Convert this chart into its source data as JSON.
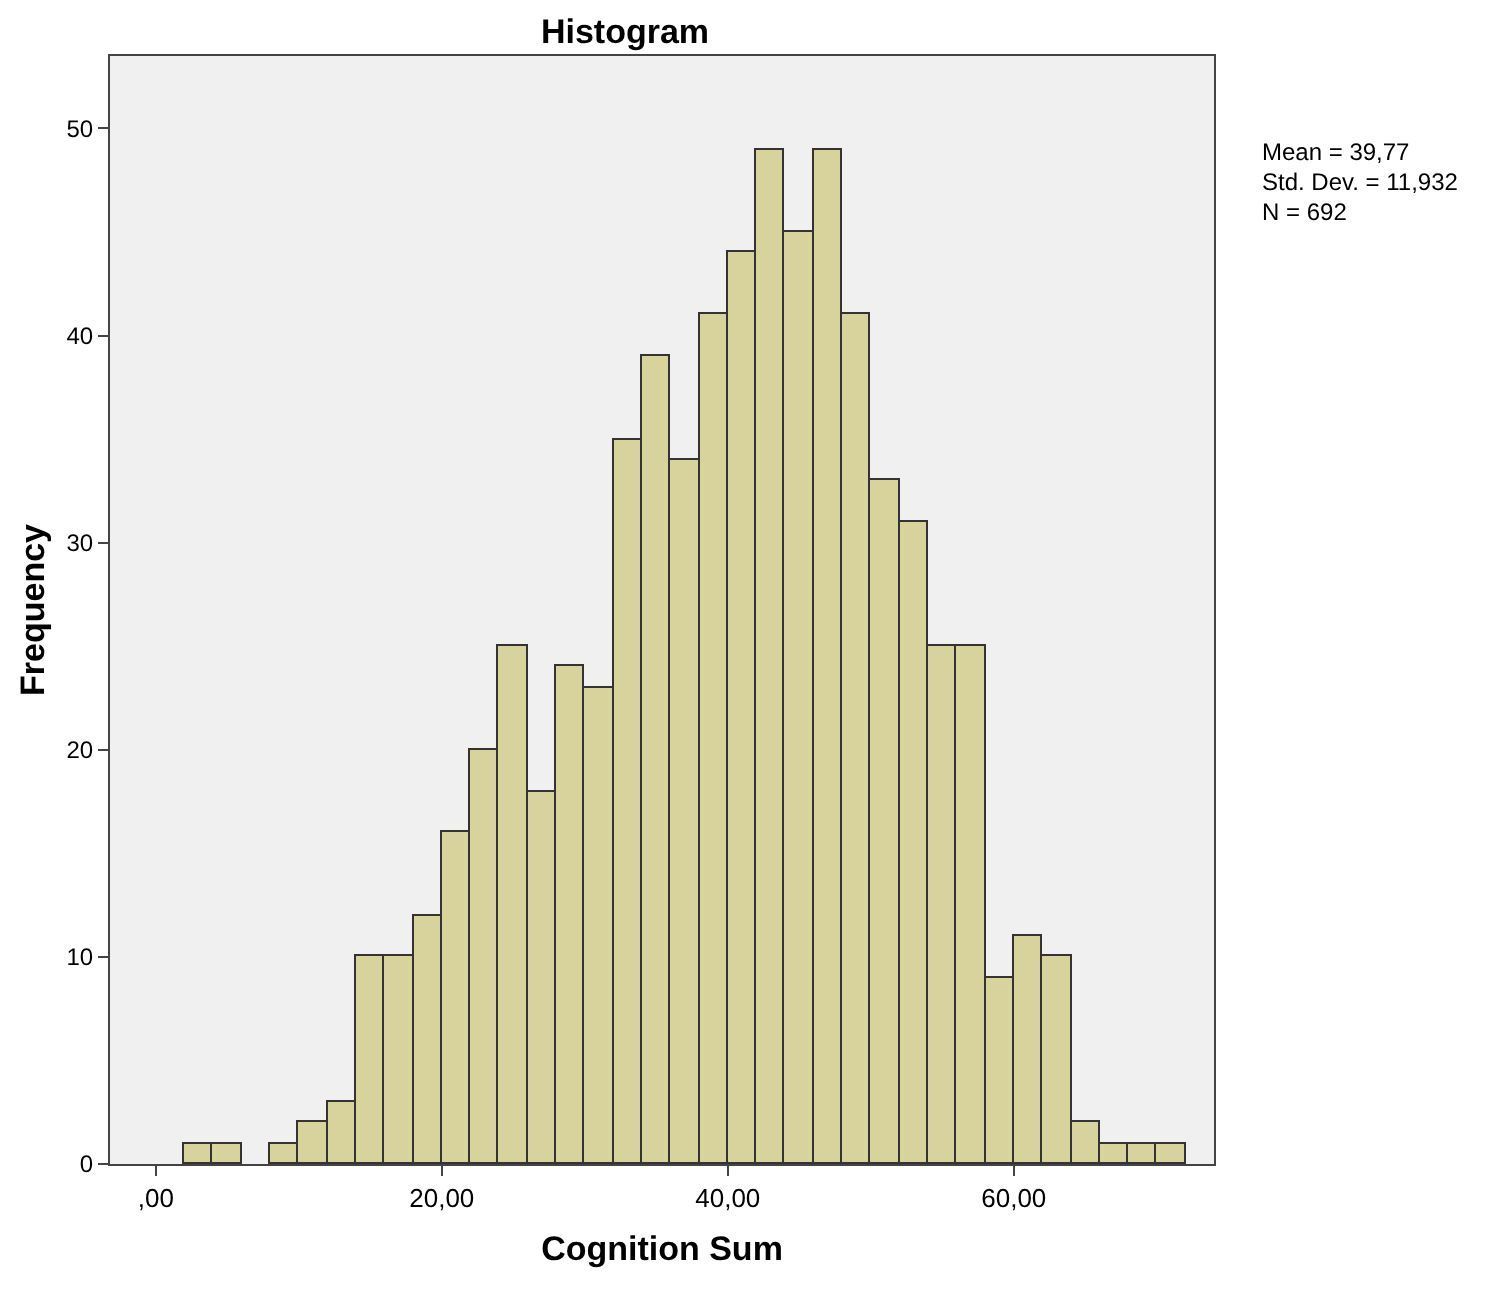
{
  "chart_data": {
    "type": "histogram",
    "title": "Histogram",
    "xlabel": "Cognition Sum",
    "ylabel": "Frequency",
    "bins": [
      2,
      4,
      6,
      8,
      10,
      12,
      14,
      16,
      18,
      20,
      22,
      24,
      26,
      28,
      30,
      32,
      34,
      36,
      38,
      40,
      42,
      44,
      46,
      48,
      50,
      52,
      54,
      56,
      58,
      60,
      62,
      64,
      66,
      68,
      70,
      72
    ],
    "values": [
      1,
      1,
      0,
      1,
      2,
      3,
      10,
      10,
      12,
      16,
      20,
      25,
      18,
      24,
      23,
      35,
      39,
      34,
      41,
      44,
      49,
      45,
      49,
      41,
      33,
      31,
      25,
      25,
      9,
      11,
      10,
      2,
      1,
      1,
      1
    ],
    "color": "#d8d29c",
    "xlim": [
      -3.2,
      74
    ],
    "xticks": [
      {
        "value": 0,
        "label": ",00"
      },
      {
        "value": 20,
        "label": "20,00"
      },
      {
        "value": 40,
        "label": "40,00"
      },
      {
        "value": 60,
        "label": "60,00"
      }
    ],
    "ylim": [
      0,
      53.5
    ],
    "yticks": [
      0,
      10,
      20,
      30,
      40,
      50
    ],
    "grid": false,
    "annotations": [
      "Mean = 39,77",
      "Std. Dev. = 11,932",
      "N = 692"
    ]
  }
}
